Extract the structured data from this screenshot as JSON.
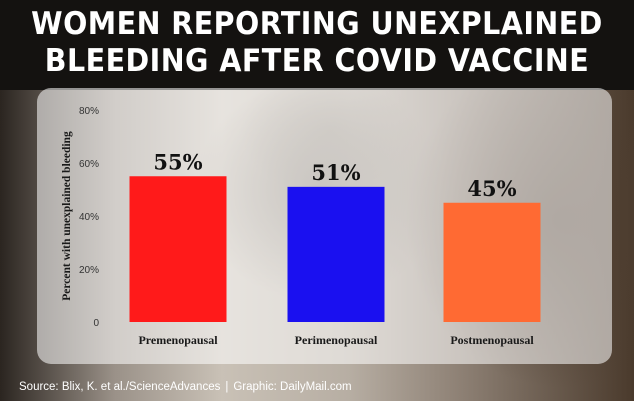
{
  "title_lines": [
    "WOMEN REPORTING UNEXPLAINED",
    "BLEEDING AFTER COVID VACCINE"
  ],
  "source": {
    "credit": "Source: Blix, K. et al./ScienceAdvances",
    "separator": "|",
    "graphic": "Graphic: DailyMail.com"
  },
  "chart_data": {
    "type": "bar",
    "categories": [
      "Premenopausal",
      "Perimenopausal",
      "Postmenopausal"
    ],
    "values": [
      55,
      51,
      45
    ],
    "value_labels": [
      "55%",
      "51%",
      "45%"
    ],
    "bar_colors": [
      "#ff1a1a",
      "#1a10f0",
      "#ff6a33"
    ],
    "ylabel": "Percent with unexplained bleeding",
    "ylim": [
      0,
      80
    ],
    "yticks": [
      0,
      20,
      40,
      60,
      80
    ],
    "ytick_labels": [
      "0",
      "20%",
      "40%",
      "60%",
      "80%"
    ],
    "grid": false,
    "legend": "none"
  }
}
